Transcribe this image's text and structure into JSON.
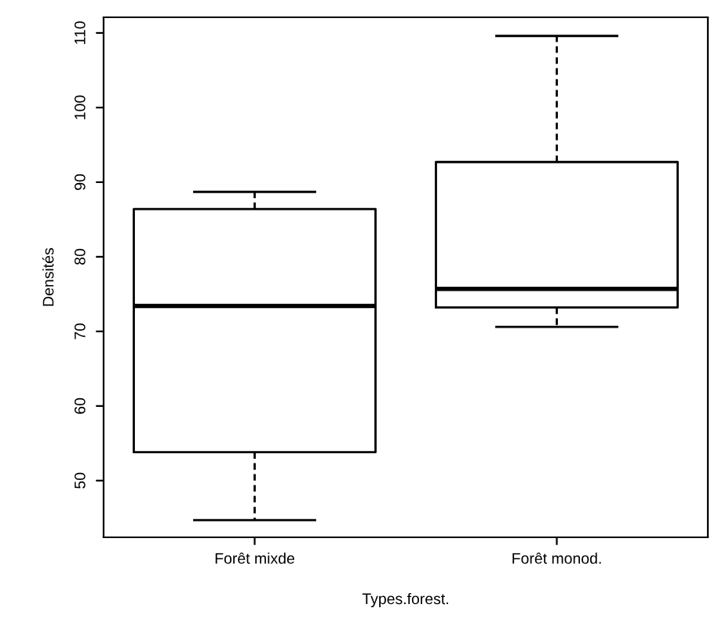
{
  "chart_data": {
    "type": "box",
    "xlabel": "Types.forest.",
    "ylabel": "Densités",
    "categories": [
      "Forêt mixde",
      "Forêt monod."
    ],
    "boxes": [
      {
        "low": 44.7,
        "q1": 53.8,
        "median": 73.4,
        "q3": 86.4,
        "high": 88.7
      },
      {
        "low": 70.6,
        "q1": 73.2,
        "median": 75.7,
        "q3": 92.7,
        "high": 109.6
      }
    ],
    "ylim": [
      42.4,
      112.1
    ],
    "yticks": [
      50,
      60,
      70,
      80,
      90,
      100,
      110
    ],
    "grid": false,
    "legend": false
  }
}
